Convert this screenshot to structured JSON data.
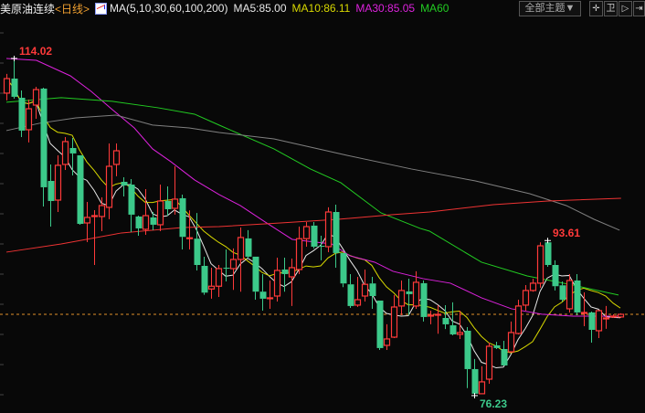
{
  "header": {
    "symbol": "美原油连续",
    "period": "<日线>",
    "ma_params": "MA(5,10,30,60,100,200)",
    "ma5": "MA5:85.00",
    "ma10": "MA10:86.11",
    "ma30": "MA30:85.05",
    "ma60": "MA60",
    "theme_button": "全部主题▼",
    "tool_icons": [
      "crosshair-icon",
      "chart-settings-icon",
      "play-icon",
      "exit-icon"
    ],
    "tool_glyphs": [
      "✛",
      "卫",
      "▷",
      "⇥"
    ]
  },
  "colors": {
    "background": "#080808",
    "up": "#ff3a3a",
    "down": "#3cc98a",
    "ma5": "#e8e8e8",
    "ma10": "#d8d800",
    "ma30": "#dd22dd",
    "ma60": "#22cc22",
    "ma100": "#808080",
    "ma200": "#ee3333",
    "last_price_line": "#e0902a"
  },
  "chart_data": {
    "type": "candlestick",
    "ylim": [
      74.28,
      118.52
    ],
    "grid": false,
    "annotations": [
      {
        "label": "114.02",
        "index": 1,
        "price": 114.02,
        "kind": "high"
      },
      {
        "label": "93.61",
        "index": 74,
        "price": 93.61,
        "kind": "high"
      },
      {
        "label": "76.23",
        "index": 64,
        "price": 76.23,
        "kind": "low"
      }
    ],
    "last_price": 85.34,
    "ohlc": [
      [
        110.13,
        112.28,
        109.31,
        111.76
      ],
      [
        111.76,
        114.02,
        109.51,
        109.72
      ],
      [
        109.61,
        110.43,
        105.21,
        105.93
      ],
      [
        106.03,
        109.41,
        104.6,
        108.38
      ],
      [
        108.79,
        110.84,
        107.26,
        110.53
      ],
      [
        110.64,
        110.74,
        97.43,
        99.58
      ],
      [
        100.29,
        102.14,
        95.17,
        98.04
      ],
      [
        98.14,
        103.16,
        96.81,
        102.04
      ],
      [
        102.14,
        105.21,
        101.52,
        104.7
      ],
      [
        103.98,
        105.11,
        100.91,
        103.37
      ],
      [
        103.16,
        103.16,
        95.38,
        95.48
      ],
      [
        95.58,
        97.94,
        93.43,
        96.2
      ],
      [
        96.3,
        97.02,
        90.87,
        96.4
      ],
      [
        96.3,
        98.45,
        94.66,
        97.53
      ],
      [
        97.33,
        104.49,
        96.0,
        101.93
      ],
      [
        102.14,
        104.49,
        100.81,
        103.67
      ],
      [
        100.19,
        100.7,
        98.55,
        99.78
      ],
      [
        99.88,
        100.5,
        94.56,
        96.51
      ],
      [
        96.3,
        96.4,
        94.15,
        94.97
      ],
      [
        94.87,
        99.37,
        94.25,
        96.4
      ],
      [
        96.2,
        96.81,
        94.76,
        95.38
      ],
      [
        95.38,
        99.88,
        94.66,
        98.04
      ],
      [
        98.04,
        99.68,
        96.4,
        97.12
      ],
      [
        97.22,
        101.93,
        96.51,
        98.25
      ],
      [
        98.35,
        98.76,
        92.61,
        94.02
      ],
      [
        93.82,
        96.99,
        92.61,
        93.92
      ],
      [
        93.82,
        96.69,
        90.26,
        90.87
      ],
      [
        90.77,
        91.79,
        87.53,
        87.77
      ],
      [
        88.18,
        90.56,
        87.09,
        88.49
      ],
      [
        88.49,
        90.87,
        87.29,
        90.46
      ],
      [
        90.56,
        92.61,
        89.03,
        90.46
      ],
      [
        90.46,
        92.72,
        88.08,
        91.49
      ],
      [
        91.49,
        95.07,
        87.88,
        93.95
      ],
      [
        93.85,
        94.77,
        91.59,
        91.8
      ],
      [
        91.8,
        91.8,
        86.98,
        87.88
      ],
      [
        87.88,
        89.85,
        85.75,
        87.09
      ],
      [
        87.09,
        89.13,
        85.96,
        87.19
      ],
      [
        87.39,
        91.69,
        86.78,
        90.26
      ],
      [
        90.36,
        91.69,
        87.88,
        89.85
      ],
      [
        89.54,
        91.59,
        86.27,
        90.57
      ],
      [
        90.36,
        95.17,
        89.85,
        93.82
      ],
      [
        93.82,
        95.68,
        92.92,
        95.17
      ],
      [
        95.28,
        95.68,
        92.72,
        92.92
      ],
      [
        93.02,
        94.15,
        91.39,
        92.92
      ],
      [
        92.92,
        97.33,
        92.31,
        96.81
      ],
      [
        96.81,
        97.63,
        90.56,
        92.21
      ],
      [
        92.21,
        92.21,
        88.39,
        88.8
      ],
      [
        88.7,
        89.85,
        86.06,
        86.27
      ],
      [
        86.37,
        89.54,
        86.17,
        86.98
      ],
      [
        87.39,
        90.36,
        86.78,
        88.7
      ],
      [
        88.8,
        89.54,
        85.96,
        87.39
      ],
      [
        86.88,
        86.88,
        81.35,
        81.56
      ],
      [
        81.86,
        84.22,
        81.35,
        82.58
      ],
      [
        82.78,
        87.5,
        82.68,
        86.16
      ],
      [
        86.27,
        89.13,
        85.24,
        88.01
      ],
      [
        87.91,
        89.33,
        85.24,
        87.6
      ],
      [
        86.27,
        90.16,
        85.96,
        88.93
      ],
      [
        88.83,
        89.13,
        84.53,
        85.04
      ],
      [
        85.14,
        85.75,
        84.22,
        85.24
      ],
      [
        85.24,
        86.37,
        83.17,
        85.34
      ],
      [
        84.93,
        86.37,
        83.69,
        84.22
      ],
      [
        84.11,
        86.68,
        82.99,
        83.09
      ],
      [
        83.09,
        85.75,
        82.58,
        83.3
      ],
      [
        83.5,
        83.91,
        77.07,
        79.2
      ],
      [
        79.2,
        80.33,
        76.23,
        76.44
      ],
      [
        76.44,
        79.51,
        76.44,
        77.77
      ],
      [
        78.07,
        82.17,
        77.56,
        81.76
      ],
      [
        81.86,
        82.27,
        81.45,
        81.56
      ],
      [
        81.45,
        82.37,
        79.61,
        79.61
      ],
      [
        81.14,
        84.53,
        81.04,
        83.3
      ],
      [
        83.19,
        86.98,
        83.09,
        86.27
      ],
      [
        86.37,
        88.62,
        85.75,
        88.01
      ],
      [
        88.01,
        89.33,
        87.88,
        88.83
      ],
      [
        88.83,
        93.41,
        88.32,
        93.02
      ],
      [
        93.41,
        93.61,
        90.67,
        90.87
      ],
      [
        90.87,
        91.39,
        88.01,
        88.49
      ],
      [
        88.59,
        89.03,
        86.78,
        86.98
      ],
      [
        85.96,
        89.85,
        85.55,
        89.13
      ],
      [
        89.13,
        89.85,
        85.24,
        85.55
      ],
      [
        85.45,
        87.8,
        84.01,
        85.55
      ],
      [
        85.55,
        85.65,
        82.17,
        83.6
      ],
      [
        83.5,
        85.75,
        82.68,
        85.75
      ],
      [
        84.83,
        86.27,
        83.71,
        84.93
      ],
      [
        85.04,
        85.34,
        84.93,
        85.14
      ],
      [
        85.04,
        85.45,
        84.93,
        85.34
      ]
    ],
    "moving_averages": [
      {
        "name": "MA5",
        "period": 5,
        "color_key": "ma5"
      },
      {
        "name": "MA10",
        "period": 10,
        "color_key": "ma10"
      },
      {
        "name": "MA30",
        "color_key": "ma30",
        "points": [
          [
            0,
            114.02
          ],
          [
            4.1,
            113.81
          ],
          [
            8.75,
            112.07
          ],
          [
            11.6,
            110.33
          ],
          [
            14.5,
            108.28
          ],
          [
            17.5,
            106.23
          ],
          [
            20,
            103.88
          ],
          [
            22.5,
            102.45
          ],
          [
            25.75,
            100.4
          ],
          [
            29.1,
            98.76
          ],
          [
            32,
            97.53
          ],
          [
            35.4,
            95.69
          ],
          [
            39.1,
            93.74
          ],
          [
            44.5,
            93.23
          ],
          [
            47,
            91.9
          ],
          [
            50.4,
            91.18
          ],
          [
            52.9,
            90.16
          ],
          [
            57,
            89.34
          ],
          [
            60.75,
            88.83
          ],
          [
            65,
            87.19
          ],
          [
            69.1,
            85.96
          ],
          [
            73.25,
            85.35
          ],
          [
            77.5,
            85.14
          ],
          [
            83.75,
            85.14
          ]
        ]
      },
      {
        "name": "MA60",
        "color_key": "ma60",
        "points": [
          [
            0,
            109.11
          ],
          [
            7.5,
            109.62
          ],
          [
            14.5,
            109.21
          ],
          [
            20.75,
            108.49
          ],
          [
            25.75,
            107.77
          ],
          [
            29.1,
            106.55
          ],
          [
            36.6,
            103.88
          ],
          [
            41.6,
            101.63
          ],
          [
            45.75,
            100.09
          ],
          [
            51.25,
            96.71
          ],
          [
            56.6,
            94.97
          ],
          [
            57.9,
            94.66
          ],
          [
            65,
            91.18
          ],
          [
            71.25,
            89.64
          ],
          [
            77.5,
            88.62
          ],
          [
            83.75,
            87.5
          ]
        ]
      },
      {
        "name": "MA100",
        "color_key": "ma100",
        "points": [
          [
            0,
            105.93
          ],
          [
            4.5,
            106.75
          ],
          [
            9.5,
            107.36
          ],
          [
            15,
            107.67
          ],
          [
            20,
            106.55
          ],
          [
            25,
            106.23
          ],
          [
            29.1,
            105.72
          ],
          [
            36.6,
            105.0
          ],
          [
            46.6,
            103.16
          ],
          [
            55.4,
            101.63
          ],
          [
            64.1,
            100.3
          ],
          [
            71.6,
            98.86
          ],
          [
            76.6,
            97.53
          ],
          [
            80.4,
            95.99
          ],
          [
            83.9,
            94.77
          ]
        ]
      },
      {
        "name": "MA200",
        "color_key": "ma200",
        "points": [
          [
            0,
            92.31
          ],
          [
            7.5,
            93.23
          ],
          [
            15.75,
            94.46
          ],
          [
            24.1,
            95.07
          ],
          [
            29.1,
            95.17
          ],
          [
            37.5,
            95.58
          ],
          [
            45.4,
            95.99
          ],
          [
            52.9,
            96.51
          ],
          [
            57.9,
            96.81
          ],
          [
            66.6,
            97.63
          ],
          [
            74.1,
            98.04
          ],
          [
            84.1,
            98.35
          ]
        ]
      }
    ]
  }
}
